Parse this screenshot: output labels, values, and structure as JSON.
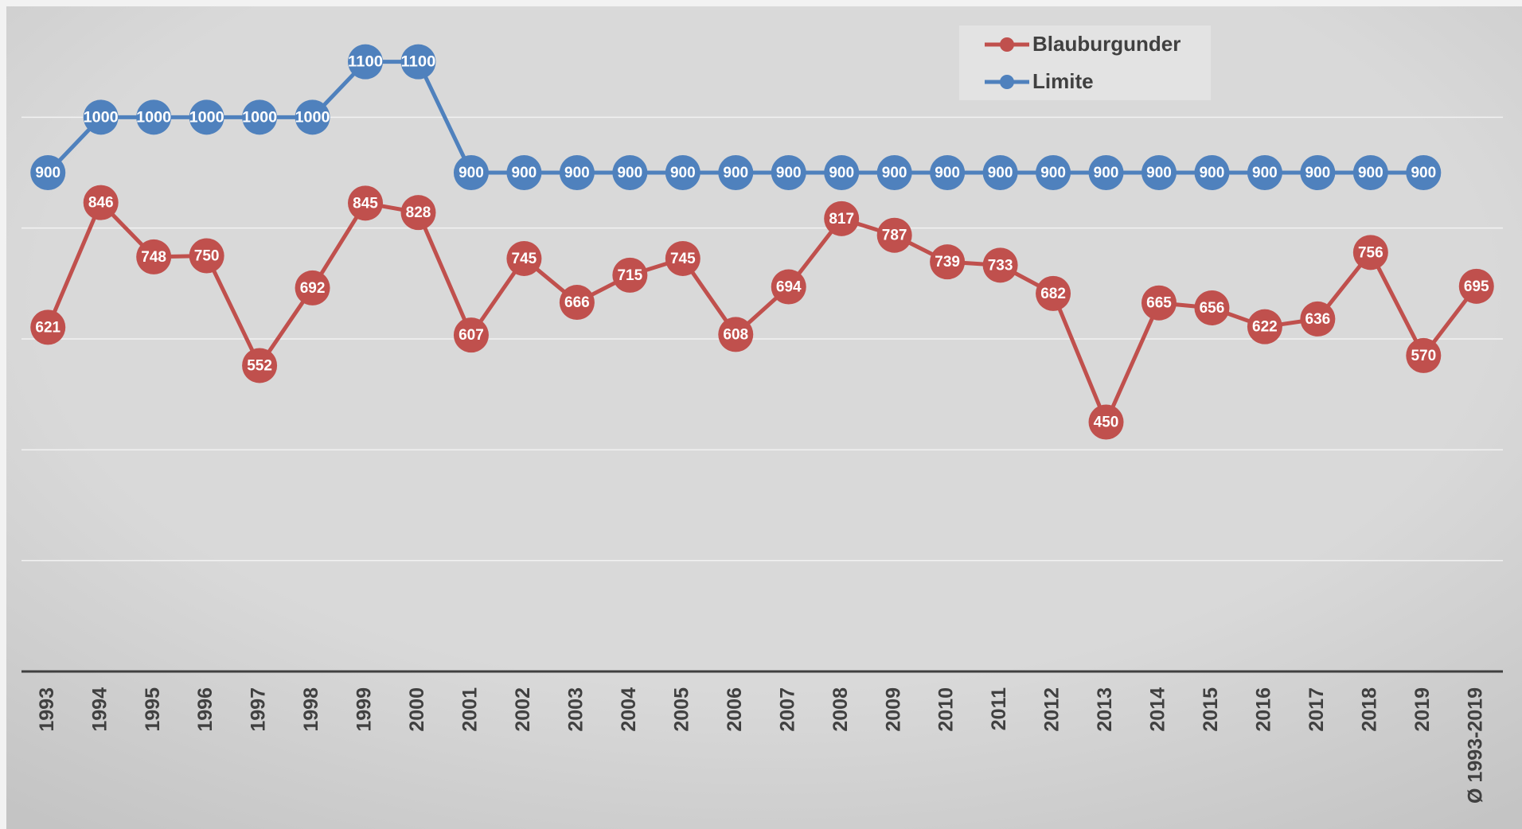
{
  "chart_data": {
    "type": "line",
    "categories": [
      "1993",
      "1994",
      "1995",
      "1996",
      "1997",
      "1998",
      "1999",
      "2000",
      "2001",
      "2002",
      "2003",
      "2004",
      "2005",
      "2006",
      "2007",
      "2008",
      "2009",
      "2010",
      "2011",
      "2012",
      "2013",
      "2014",
      "2015",
      "2016",
      "2017",
      "2018",
      "2019",
      "Ø 1993-2019"
    ],
    "series": [
      {
        "name": "Blauburgunder",
        "color": "#c0504d",
        "values": [
          621,
          846,
          748,
          750,
          552,
          692,
          845,
          828,
          607,
          745,
          666,
          715,
          745,
          608,
          694,
          817,
          787,
          739,
          733,
          682,
          450,
          665,
          656,
          622,
          636,
          756,
          570,
          695
        ]
      },
      {
        "name": "Limite",
        "color": "#4f81bd",
        "values": [
          900,
          1000,
          1000,
          1000,
          1000,
          1000,
          1100,
          1100,
          900,
          900,
          900,
          900,
          900,
          900,
          900,
          900,
          900,
          900,
          900,
          900,
          900,
          900,
          900,
          900,
          900,
          900,
          900,
          null
        ]
      }
    ],
    "ylim": [
      0,
      1200
    ],
    "yticks": [
      0,
      200,
      400,
      600,
      800,
      1000
    ],
    "grid": true,
    "legend": "top-right"
  }
}
